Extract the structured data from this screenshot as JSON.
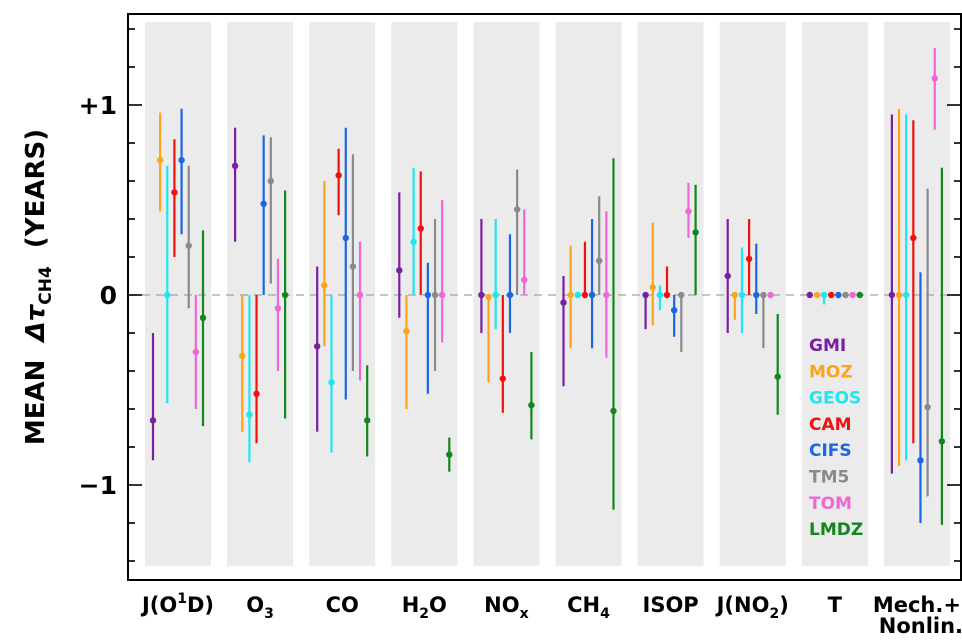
{
  "chart_data": {
    "type": "scatter",
    "ylabel_parts": {
      "prefix": "MEAN  ",
      "symbol": "Δτ",
      "sub": "CH4",
      "suffix": "  (YEARS)"
    },
    "ylim": [
      -1.45,
      1.45
    ],
    "y_ticks": [
      1,
      0,
      -1
    ],
    "y_tick_labels": [
      "+1",
      "0",
      "−1"
    ],
    "zero_line": true,
    "background_bands": true,
    "categories": [
      {
        "label": "J(O",
        "sup": "1",
        "tail": "D)"
      },
      {
        "label": "O",
        "sub": "3"
      },
      {
        "label": "CO"
      },
      {
        "label": "H",
        "sub": "2",
        "tail": "O"
      },
      {
        "label": "NO",
        "sub": "x"
      },
      {
        "label": "CH",
        "sub": "4"
      },
      {
        "label": "ISOP"
      },
      {
        "label": "J(NO",
        "sub": "2",
        "tail": ")"
      },
      {
        "label": "T"
      },
      {
        "label": "Mech.+",
        "line2": "Nonlin."
      }
    ],
    "legend": {
      "placement": "right, inside band 9"
    },
    "series": [
      {
        "name": "GMI",
        "color": "#7a1fa2",
        "values": [
          -0.66,
          0.68,
          -0.27,
          0.13,
          0.0,
          -0.04,
          0.0,
          0.1,
          0.0,
          0.0
        ],
        "low": [
          -0.87,
          0.28,
          -0.72,
          -0.12,
          -0.2,
          -0.48,
          -0.18,
          -0.2,
          0.0,
          -0.94
        ],
        "high": [
          -0.2,
          0.88,
          0.15,
          0.54,
          0.4,
          0.1,
          0.0,
          0.4,
          0.0,
          0.95
        ]
      },
      {
        "name": "MOZ",
        "color": "#ffa31a",
        "values": [
          0.71,
          -0.32,
          0.05,
          -0.19,
          -0.01,
          0.0,
          0.04,
          0.0,
          0.0,
          0.0
        ],
        "low": [
          0.44,
          -0.72,
          -0.27,
          -0.6,
          -0.46,
          -0.28,
          -0.16,
          -0.13,
          0.0,
          -0.9
        ],
        "high": [
          0.96,
          0.0,
          0.6,
          0.0,
          0.0,
          0.26,
          0.38,
          0.0,
          0.0,
          0.98
        ]
      },
      {
        "name": "GEOS",
        "color": "#1ee6f0",
        "values": [
          0.0,
          -0.63,
          -0.46,
          0.28,
          0.0,
          0.0,
          0.0,
          0.0,
          0.0,
          0.0
        ],
        "low": [
          -0.57,
          -0.88,
          -0.83,
          0.0,
          -0.18,
          0.0,
          -0.08,
          -0.2,
          -0.05,
          -0.87
        ],
        "high": [
          0.68,
          0.0,
          0.0,
          0.67,
          0.4,
          0.0,
          0.05,
          0.25,
          0.0,
          0.95
        ]
      },
      {
        "name": "CAM",
        "color": "#f01010",
        "values": [
          0.54,
          -0.52,
          0.63,
          0.35,
          -0.44,
          0.0,
          0.0,
          0.19,
          0.0,
          0.3
        ],
        "low": [
          0.2,
          -0.78,
          0.42,
          0.0,
          -0.62,
          0.0,
          0.0,
          0.0,
          0.0,
          -0.78
        ],
        "high": [
          0.82,
          0.0,
          0.77,
          0.65,
          0.0,
          0.28,
          0.15,
          0.4,
          0.0,
          0.92
        ]
      },
      {
        "name": "CIFS",
        "color": "#1a67e0",
        "values": [
          0.71,
          0.48,
          0.3,
          0.0,
          0.0,
          0.0,
          -0.08,
          0.0,
          0.0,
          -0.87
        ],
        "low": [
          0.32,
          0.0,
          -0.55,
          -0.52,
          -0.2,
          -0.28,
          -0.22,
          -0.1,
          0.0,
          -1.2
        ],
        "high": [
          0.98,
          0.84,
          0.88,
          0.17,
          0.32,
          0.4,
          0.0,
          0.27,
          0.0,
          0.12
        ]
      },
      {
        "name": "TM5",
        "color": "#8a8a8a",
        "values": [
          0.26,
          0.6,
          0.15,
          0.0,
          0.45,
          0.18,
          0.0,
          0.0,
          0.0,
          -0.59
        ],
        "low": [
          -0.07,
          0.06,
          -0.4,
          -0.4,
          0.0,
          0.0,
          -0.3,
          -0.28,
          0.0,
          -1.06
        ],
        "high": [
          0.68,
          0.83,
          0.74,
          0.4,
          0.66,
          0.52,
          0.0,
          0.0,
          0.0,
          0.56
        ]
      },
      {
        "name": "TOM",
        "color": "#f066d6",
        "values": [
          -0.3,
          -0.07,
          0.0,
          0.0,
          0.08,
          0.0,
          0.44,
          0.0,
          0.0,
          1.14
        ],
        "low": [
          -0.6,
          -0.4,
          -0.45,
          -0.25,
          0.0,
          -0.33,
          0.3,
          0.0,
          0.0,
          0.87
        ],
        "high": [
          0.0,
          0.19,
          0.28,
          0.5,
          0.45,
          0.44,
          0.59,
          0.0,
          0.0,
          1.3
        ]
      },
      {
        "name": "LMDZ",
        "color": "#12871e",
        "values": [
          -0.12,
          0.0,
          -0.66,
          -0.84,
          -0.58,
          -0.61,
          0.33,
          -0.43,
          0.0,
          -0.77
        ],
        "low": [
          -0.69,
          -0.65,
          -0.85,
          -0.93,
          -0.76,
          -1.13,
          0.0,
          -0.63,
          0.0,
          -1.21
        ],
        "high": [
          0.34,
          0.55,
          -0.37,
          -0.75,
          -0.3,
          0.72,
          0.58,
          -0.1,
          0.0,
          0.67
        ]
      }
    ]
  }
}
